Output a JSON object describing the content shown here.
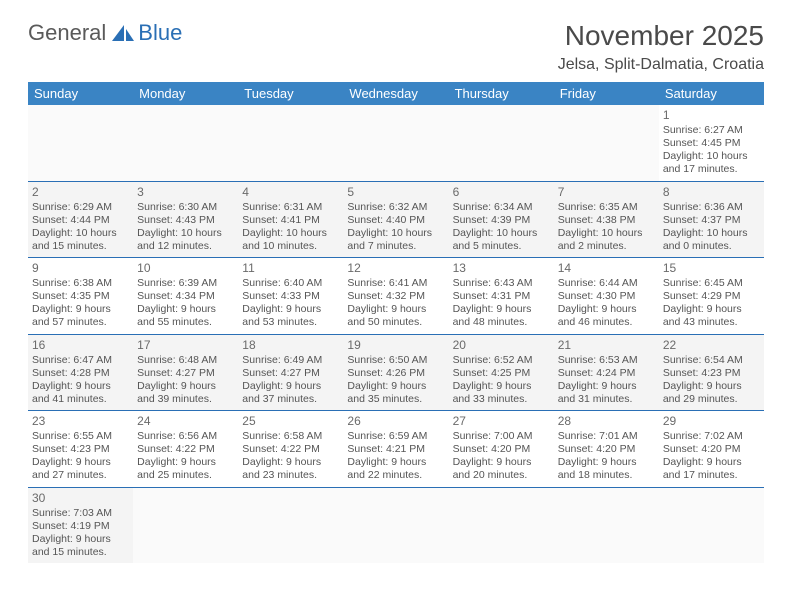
{
  "logo": {
    "text_left": "General",
    "text_right": "Blue"
  },
  "header": {
    "title": "November 2025",
    "location": "Jelsa, Split-Dalmatia, Croatia"
  },
  "colors": {
    "header_bg": "#3a84c4",
    "header_text": "#ffffff",
    "rule": "#2a6fb5",
    "body_text": "#555555"
  },
  "weekdays": [
    "Sunday",
    "Monday",
    "Tuesday",
    "Wednesday",
    "Thursday",
    "Friday",
    "Saturday"
  ],
  "days": {
    "1": {
      "sunrise": "6:27 AM",
      "sunset": "4:45 PM",
      "daylight": "10 hours and 17 minutes."
    },
    "2": {
      "sunrise": "6:29 AM",
      "sunset": "4:44 PM",
      "daylight": "10 hours and 15 minutes."
    },
    "3": {
      "sunrise": "6:30 AM",
      "sunset": "4:43 PM",
      "daylight": "10 hours and 12 minutes."
    },
    "4": {
      "sunrise": "6:31 AM",
      "sunset": "4:41 PM",
      "daylight": "10 hours and 10 minutes."
    },
    "5": {
      "sunrise": "6:32 AM",
      "sunset": "4:40 PM",
      "daylight": "10 hours and 7 minutes."
    },
    "6": {
      "sunrise": "6:34 AM",
      "sunset": "4:39 PM",
      "daylight": "10 hours and 5 minutes."
    },
    "7": {
      "sunrise": "6:35 AM",
      "sunset": "4:38 PM",
      "daylight": "10 hours and 2 minutes."
    },
    "8": {
      "sunrise": "6:36 AM",
      "sunset": "4:37 PM",
      "daylight": "10 hours and 0 minutes."
    },
    "9": {
      "sunrise": "6:38 AM",
      "sunset": "4:35 PM",
      "daylight": "9 hours and 57 minutes."
    },
    "10": {
      "sunrise": "6:39 AM",
      "sunset": "4:34 PM",
      "daylight": "9 hours and 55 minutes."
    },
    "11": {
      "sunrise": "6:40 AM",
      "sunset": "4:33 PM",
      "daylight": "9 hours and 53 minutes."
    },
    "12": {
      "sunrise": "6:41 AM",
      "sunset": "4:32 PM",
      "daylight": "9 hours and 50 minutes."
    },
    "13": {
      "sunrise": "6:43 AM",
      "sunset": "4:31 PM",
      "daylight": "9 hours and 48 minutes."
    },
    "14": {
      "sunrise": "6:44 AM",
      "sunset": "4:30 PM",
      "daylight": "9 hours and 46 minutes."
    },
    "15": {
      "sunrise": "6:45 AM",
      "sunset": "4:29 PM",
      "daylight": "9 hours and 43 minutes."
    },
    "16": {
      "sunrise": "6:47 AM",
      "sunset": "4:28 PM",
      "daylight": "9 hours and 41 minutes."
    },
    "17": {
      "sunrise": "6:48 AM",
      "sunset": "4:27 PM",
      "daylight": "9 hours and 39 minutes."
    },
    "18": {
      "sunrise": "6:49 AM",
      "sunset": "4:27 PM",
      "daylight": "9 hours and 37 minutes."
    },
    "19": {
      "sunrise": "6:50 AM",
      "sunset": "4:26 PM",
      "daylight": "9 hours and 35 minutes."
    },
    "20": {
      "sunrise": "6:52 AM",
      "sunset": "4:25 PM",
      "daylight": "9 hours and 33 minutes."
    },
    "21": {
      "sunrise": "6:53 AM",
      "sunset": "4:24 PM",
      "daylight": "9 hours and 31 minutes."
    },
    "22": {
      "sunrise": "6:54 AM",
      "sunset": "4:23 PM",
      "daylight": "9 hours and 29 minutes."
    },
    "23": {
      "sunrise": "6:55 AM",
      "sunset": "4:23 PM",
      "daylight": "9 hours and 27 minutes."
    },
    "24": {
      "sunrise": "6:56 AM",
      "sunset": "4:22 PM",
      "daylight": "9 hours and 25 minutes."
    },
    "25": {
      "sunrise": "6:58 AM",
      "sunset": "4:22 PM",
      "daylight": "9 hours and 23 minutes."
    },
    "26": {
      "sunrise": "6:59 AM",
      "sunset": "4:21 PM",
      "daylight": "9 hours and 22 minutes."
    },
    "27": {
      "sunrise": "7:00 AM",
      "sunset": "4:20 PM",
      "daylight": "9 hours and 20 minutes."
    },
    "28": {
      "sunrise": "7:01 AM",
      "sunset": "4:20 PM",
      "daylight": "9 hours and 18 minutes."
    },
    "29": {
      "sunrise": "7:02 AM",
      "sunset": "4:20 PM",
      "daylight": "9 hours and 17 minutes."
    },
    "30": {
      "sunrise": "7:03 AM",
      "sunset": "4:19 PM",
      "daylight": "9 hours and 15 minutes."
    }
  },
  "labels": {
    "sunrise": "Sunrise:",
    "sunset": "Sunset:",
    "daylight": "Daylight:"
  },
  "layout": {
    "first_day_column": 6,
    "num_days": 30,
    "columns": 7
  }
}
